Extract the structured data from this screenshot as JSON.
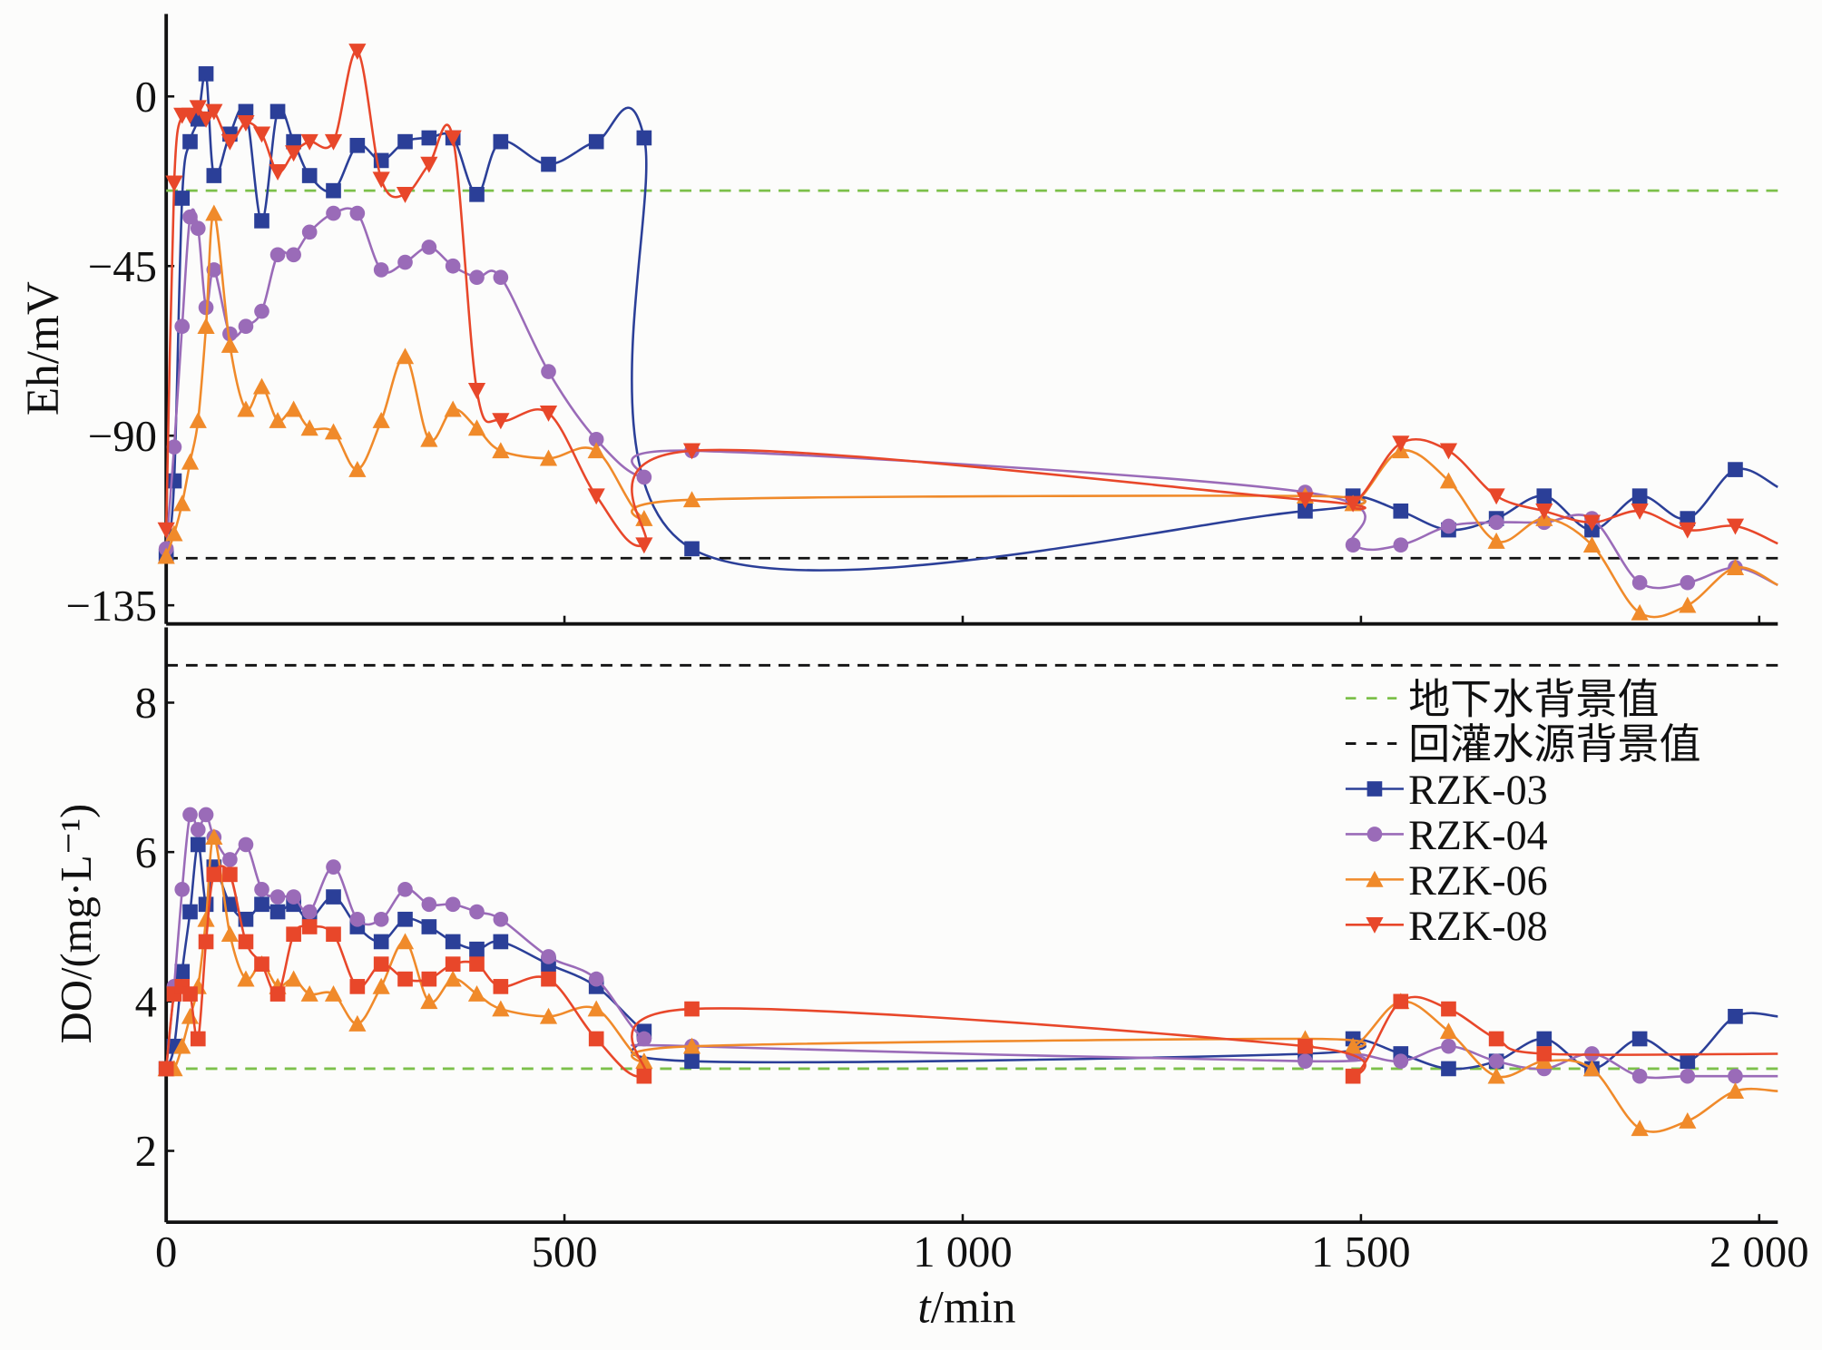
{
  "chart_data": [
    {
      "type": "line",
      "panel": "top",
      "ylabel": "Eh/mV",
      "ylim": [
        -140,
        22
      ],
      "yticks": [
        "0",
        "−45",
        "−90",
        "−135"
      ],
      "ytick_values": [
        0,
        -45,
        -90,
        -135
      ],
      "xlim": [
        0,
        2030
      ],
      "reference_lines": [
        {
          "name": "地下水背景值",
          "value": -25,
          "color": "#7cc04a"
        },
        {
          "name": "回灌水源背景值",
          "value": -122.5,
          "color": "#111111"
        }
      ],
      "x": [
        0,
        10,
        20,
        30,
        40,
        50,
        60,
        80,
        100,
        120,
        140,
        160,
        180,
        210,
        240,
        270,
        300,
        330,
        360,
        390,
        420,
        480,
        540,
        600,
        660,
        1430,
        1490,
        1550,
        1610,
        1670,
        1730,
        1790,
        1850,
        1910,
        1970
      ],
      "series": [
        {
          "name": "RZK-03",
          "values": [
            -122,
            -102,
            -27,
            -12,
            -6,
            6,
            -21,
            -10,
            -4,
            -33,
            -4,
            -12,
            -21,
            -25,
            -13,
            -17,
            -12,
            -11,
            -11,
            -26,
            -12,
            -18,
            -12,
            -11,
            -120,
            -110,
            -106,
            -110,
            -115,
            -112,
            -106,
            -115,
            -106,
            -112,
            -99
          ]
        },
        {
          "name": "RZK-04",
          "values": [
            -120,
            -93,
            -61,
            -32,
            -35,
            -56,
            -46,
            -63,
            -61,
            -57,
            -42,
            -42,
            -36,
            -31,
            -31,
            -46,
            -44,
            -40,
            -45,
            -48,
            -48,
            -73,
            -91,
            -101,
            -94,
            -105,
            -119,
            -119,
            -114,
            -113,
            -113,
            -112,
            -129,
            -129,
            -125
          ]
        },
        {
          "name": "RZK-06",
          "values": [
            -122,
            -116,
            -108,
            -97,
            -86,
            -61,
            -31,
            -66,
            -83,
            -77,
            -86,
            -83,
            -88,
            -89,
            -99,
            -86,
            -69,
            -91,
            -83,
            -88,
            -94,
            -96,
            -94,
            -112,
            -107,
            -106,
            -108,
            -94,
            -102,
            -118,
            -112,
            -119,
            -137,
            -135,
            -125
          ]
        },
        {
          "name": "RZK-08",
          "values": [
            -115,
            -23,
            -5,
            -5,
            -3,
            -6,
            -4,
            -12,
            -7,
            -10,
            -20,
            -15,
            -12,
            -12,
            12,
            -22,
            -26,
            -18,
            -11,
            -78,
            -86,
            -84,
            -106,
            -119,
            -94,
            -107,
            -108,
            -92,
            -94,
            -106,
            -110,
            -113,
            -110,
            -115,
            -114
          ]
        }
      ]
    },
    {
      "type": "line",
      "panel": "bottom",
      "ylabel": "DO/(mg·L⁻¹)",
      "ylim": [
        1,
        9
      ],
      "yticks": [
        "2",
        "4",
        "6",
        "8"
      ],
      "ytick_values": [
        2,
        4,
        6,
        8
      ],
      "xlabel_var": "t",
      "xlabel_unit": "/min",
      "xticks": [
        "0",
        "500",
        "1 000",
        "1 500",
        "2 000"
      ],
      "xtick_values": [
        0,
        500,
        1000,
        1500,
        2000
      ],
      "xlim": [
        0,
        2030
      ],
      "reference_lines": [
        {
          "name": "地下水背景值",
          "value": 3.1,
          "color": "#7cc04a"
        },
        {
          "name": "回灌水源背景值",
          "value": 8.5,
          "color": "#111111"
        }
      ],
      "x": [
        0,
        10,
        20,
        30,
        40,
        50,
        60,
        80,
        100,
        120,
        140,
        160,
        180,
        210,
        240,
        270,
        300,
        330,
        360,
        390,
        420,
        480,
        540,
        600,
        660,
        1430,
        1490,
        1550,
        1610,
        1670,
        1730,
        1790,
        1850,
        1910,
        1970
      ],
      "series": [
        {
          "name": "RZK-03",
          "values": [
            3.1,
            3.4,
            4.4,
            5.2,
            6.1,
            5.3,
            5.8,
            5.3,
            5.1,
            5.3,
            5.2,
            5.3,
            5.1,
            5.4,
            5.0,
            4.8,
            5.1,
            5.0,
            4.8,
            4.7,
            4.8,
            4.5,
            4.2,
            3.6,
            3.2,
            3.3,
            3.5,
            3.3,
            3.1,
            3.2,
            3.5,
            3.1,
            3.5,
            3.2,
            3.8
          ]
        },
        {
          "name": "RZK-04",
          "values": [
            3.1,
            4.2,
            5.5,
            6.5,
            6.3,
            6.5,
            6.2,
            5.9,
            6.1,
            5.5,
            5.4,
            5.4,
            5.2,
            5.8,
            5.1,
            5.1,
            5.5,
            5.3,
            5.3,
            5.2,
            5.1,
            4.6,
            4.3,
            3.5,
            3.4,
            3.2,
            3.3,
            3.2,
            3.4,
            3.2,
            3.1,
            3.3,
            3.0,
            3.0,
            3.0
          ]
        },
        {
          "name": "RZK-06",
          "values": [
            3.1,
            3.1,
            3.4,
            3.8,
            4.2,
            5.1,
            6.2,
            4.9,
            4.3,
            4.5,
            4.2,
            4.3,
            4.1,
            4.1,
            3.7,
            4.2,
            4.8,
            4.0,
            4.3,
            4.1,
            3.9,
            3.8,
            3.9,
            3.2,
            3.4,
            3.5,
            3.4,
            4.0,
            3.6,
            3.0,
            3.2,
            3.1,
            2.3,
            2.4,
            2.8
          ]
        },
        {
          "name": "RZK-08",
          "values": [
            3.1,
            4.1,
            4.2,
            4.1,
            3.5,
            4.8,
            5.7,
            5.7,
            4.8,
            4.5,
            4.1,
            4.9,
            5.0,
            4.9,
            4.2,
            4.5,
            4.3,
            4.3,
            4.5,
            4.5,
            4.2,
            4.3,
            3.5,
            3.0,
            3.9,
            3.4,
            3.0,
            4.0,
            3.9,
            3.5,
            3.3,
            null,
            null,
            null,
            null
          ]
        }
      ]
    }
  ],
  "legend": {
    "placement": "right (bottom panel)",
    "entries": [
      {
        "label": "地下水背景值",
        "style": "dashed",
        "color": "#7cc04a"
      },
      {
        "label": "回灌水源背景值",
        "style": "dashed",
        "color": "#111111"
      },
      {
        "label": "RZK-03",
        "marker": "square",
        "color": "#2b3f98"
      },
      {
        "label": "RZK-04",
        "marker": "circle",
        "color": "#9a6bb8"
      },
      {
        "label": "RZK-06",
        "marker": "triangle-up",
        "color": "#f08a2a"
      },
      {
        "label": "RZK-08",
        "marker": "triangle-down",
        "color": "#e8472a"
      }
    ]
  },
  "series_colors": {
    "RZK-03": "#2b3f98",
    "RZK-04": "#9a6bb8",
    "RZK-06": "#f08a2a",
    "RZK-08": "#e8472a"
  },
  "series_markers": {
    "RZK-03": "square",
    "RZK-04": "circle",
    "RZK-06": "triangle-up",
    "RZK-08": "triangle-down"
  },
  "bottom_panel_marker_overrides": {
    "RZK-08": "square"
  }
}
